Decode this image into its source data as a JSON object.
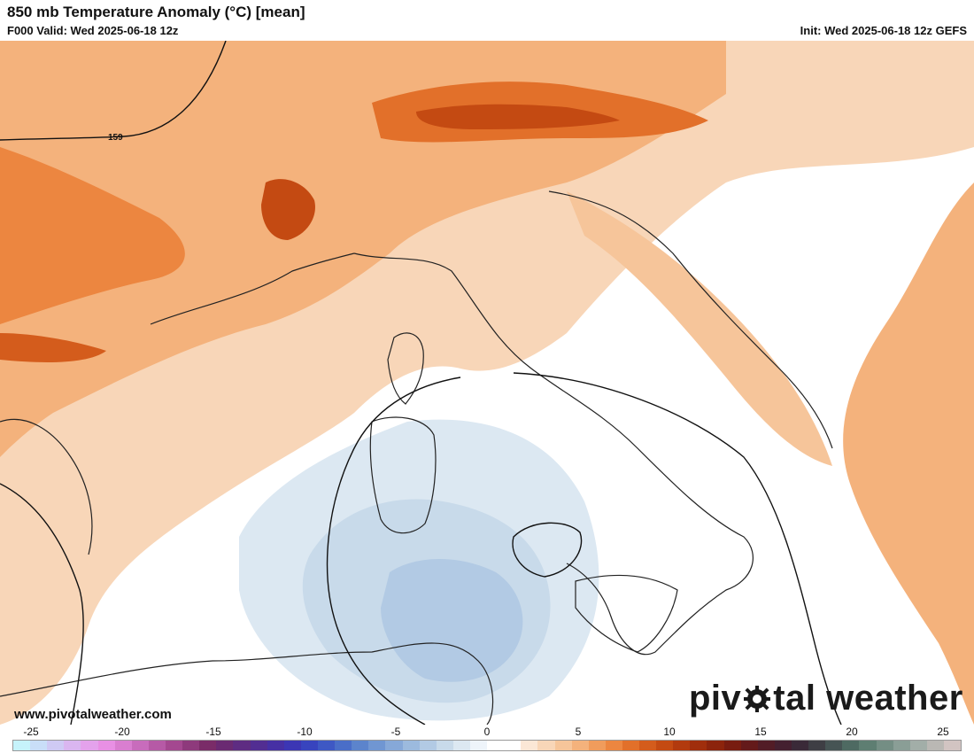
{
  "header": {
    "title": "850 mb Temperature Anomaly (°C) [mean]",
    "valid": "F000 Valid: Wed 2025-06-18 12z",
    "init": "Init: Wed 2025-06-18 12z GEFS"
  },
  "map": {
    "contour_label": "159"
  },
  "footer": {
    "url": "www.pivotalweather.com",
    "brand_left": "piv",
    "brand_right": "tal weather"
  },
  "colorbar": {
    "ticks": [
      "-25",
      "-20",
      "-15",
      "-10",
      "-5",
      "0",
      "5",
      "10",
      "15",
      "20",
      "25"
    ],
    "colors": [
      "#c6f3fb",
      "#c9def8",
      "#cfcaf4",
      "#dab6f0",
      "#e4a2ec",
      "#e890e4",
      "#d97ed0",
      "#c86cbc",
      "#b65aa6",
      "#a44890",
      "#8e3a7c",
      "#7a2c68",
      "#6a2a72",
      "#5e2c82",
      "#522e92",
      "#4630a4",
      "#3c36b4",
      "#3844be",
      "#3e58c4",
      "#4a6ec8",
      "#5c84cc",
      "#7096d2",
      "#86a8d8",
      "#9cbade",
      "#b2cae4",
      "#c8daea",
      "#dce8f2",
      "#eef4fa",
      "#ffffff",
      "#ffffff",
      "#fbe7d6",
      "#f8d6b8",
      "#f6c59a",
      "#f4b27c",
      "#f09c5c",
      "#ec8640",
      "#e2702a",
      "#d45c1c",
      "#c44a12",
      "#b23a0e",
      "#a02e0c",
      "#8c240c",
      "#781c10",
      "#641a1a",
      "#521c26",
      "#442030",
      "#3a2a38",
      "#3e3e44",
      "#465454",
      "#4e6a62",
      "#5e7e72",
      "#748e84",
      "#8a9e96",
      "#a2aea8",
      "#bab8b4",
      "#d2c4c2"
    ]
  }
}
